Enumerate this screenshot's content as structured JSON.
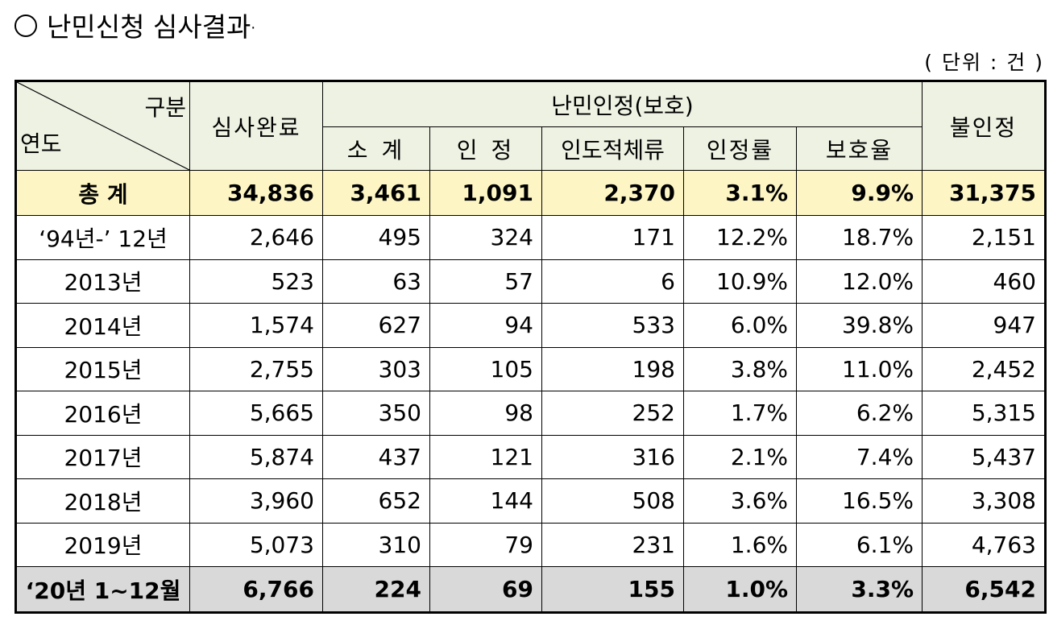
{
  "title": "난민신청 심사결과",
  "unit": "( 단위 : 건 )",
  "header": {
    "gubun": "구분",
    "year": "연도",
    "completed": "심사완료",
    "refugee_group": "난민인정(보호)",
    "not_recognized": "불인정",
    "subtotal": "소 계",
    "recognized": "인 정",
    "humanitarian": "인도적체류",
    "recognition_rate": "인정률",
    "protection_rate": "보호율"
  },
  "rows": [
    {
      "label": "총 계",
      "completed": "34,836",
      "subtotal": "3,461",
      "recognized": "1,091",
      "humanitarian": "2,370",
      "recognition_rate": "3.1%",
      "protection_rate": "9.9%",
      "not_recognized": "31,375"
    },
    {
      "label": "‘94년-’ 12년",
      "completed": "2,646",
      "subtotal": "495",
      "recognized": "324",
      "humanitarian": "171",
      "recognition_rate": "12.2%",
      "protection_rate": "18.7%",
      "not_recognized": "2,151"
    },
    {
      "label": "2013년",
      "completed": "523",
      "subtotal": "63",
      "recognized": "57",
      "humanitarian": "6",
      "recognition_rate": "10.9%",
      "protection_rate": "12.0%",
      "not_recognized": "460"
    },
    {
      "label": "2014년",
      "completed": "1,574",
      "subtotal": "627",
      "recognized": "94",
      "humanitarian": "533",
      "recognition_rate": "6.0%",
      "protection_rate": "39.8%",
      "not_recognized": "947"
    },
    {
      "label": "2015년",
      "completed": "2,755",
      "subtotal": "303",
      "recognized": "105",
      "humanitarian": "198",
      "recognition_rate": "3.8%",
      "protection_rate": "11.0%",
      "not_recognized": "2,452"
    },
    {
      "label": "2016년",
      "completed": "5,665",
      "subtotal": "350",
      "recognized": "98",
      "humanitarian": "252",
      "recognition_rate": "1.7%",
      "protection_rate": "6.2%",
      "not_recognized": "5,315"
    },
    {
      "label": "2017년",
      "completed": "5,874",
      "subtotal": "437",
      "recognized": "121",
      "humanitarian": "316",
      "recognition_rate": "2.1%",
      "protection_rate": "7.4%",
      "not_recognized": "5,437"
    },
    {
      "label": "2018년",
      "completed": "3,960",
      "subtotal": "652",
      "recognized": "144",
      "humanitarian": "508",
      "recognition_rate": "3.6%",
      "protection_rate": "16.5%",
      "not_recognized": "3,308"
    },
    {
      "label": "2019년",
      "completed": "5,073",
      "subtotal": "310",
      "recognized": "79",
      "humanitarian": "231",
      "recognition_rate": "1.6%",
      "protection_rate": "6.1%",
      "not_recognized": "4,763"
    },
    {
      "label": "‘20년 1~12월",
      "completed": "6,766",
      "subtotal": "224",
      "recognized": "69",
      "humanitarian": "155",
      "recognition_rate": "1.0%",
      "protection_rate": "3.3%",
      "not_recognized": "6,542"
    }
  ]
}
